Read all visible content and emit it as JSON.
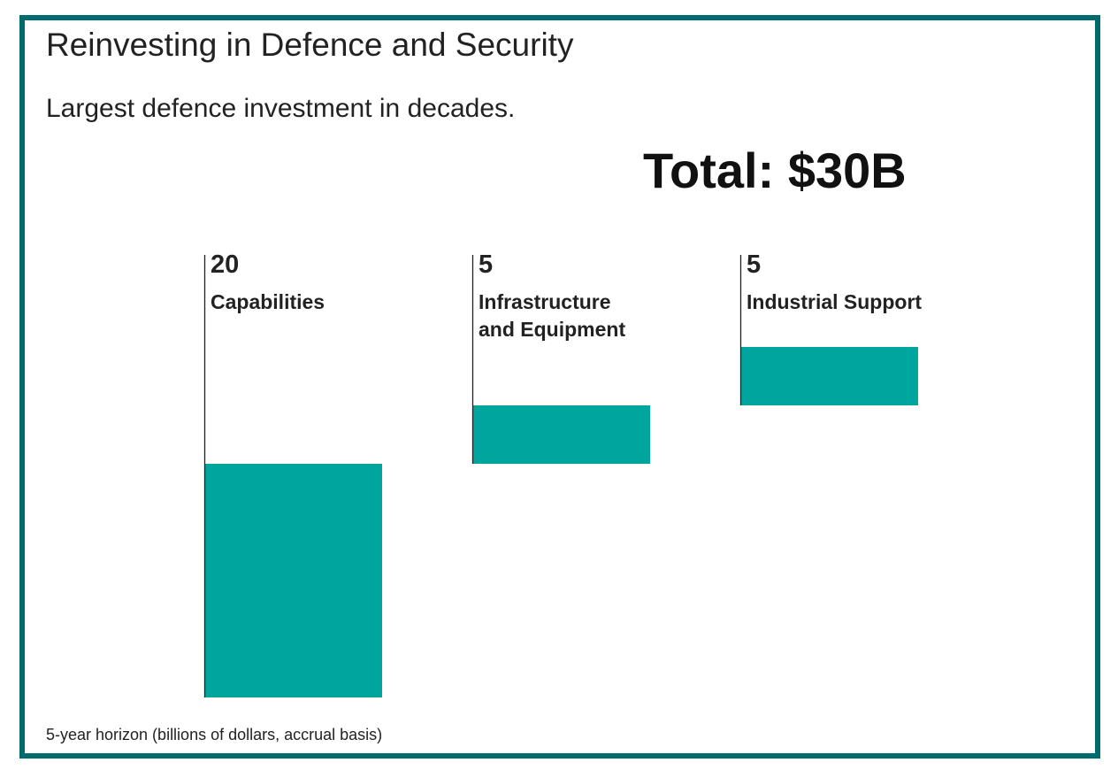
{
  "chart_data": {
    "type": "bar",
    "subtype": "waterfall",
    "title": "Reinvesting in Defence and Security",
    "subtitle": "Largest defence investment in decades.",
    "total_label": "Total: $30B",
    "categories": [
      [
        "Capabilities"
      ],
      [
        "Infrastructure",
        "and Equipment"
      ],
      [
        "Industrial Support"
      ]
    ],
    "values": [
      20,
      5,
      5
    ],
    "value_labels": [
      "20",
      "5",
      "5"
    ],
    "note": "5-year horizon (billions of dollars, accrual basis)",
    "ylim": [
      0,
      30
    ],
    "bar_color": "#00a59d",
    "frame_color": "#006b6e"
  }
}
